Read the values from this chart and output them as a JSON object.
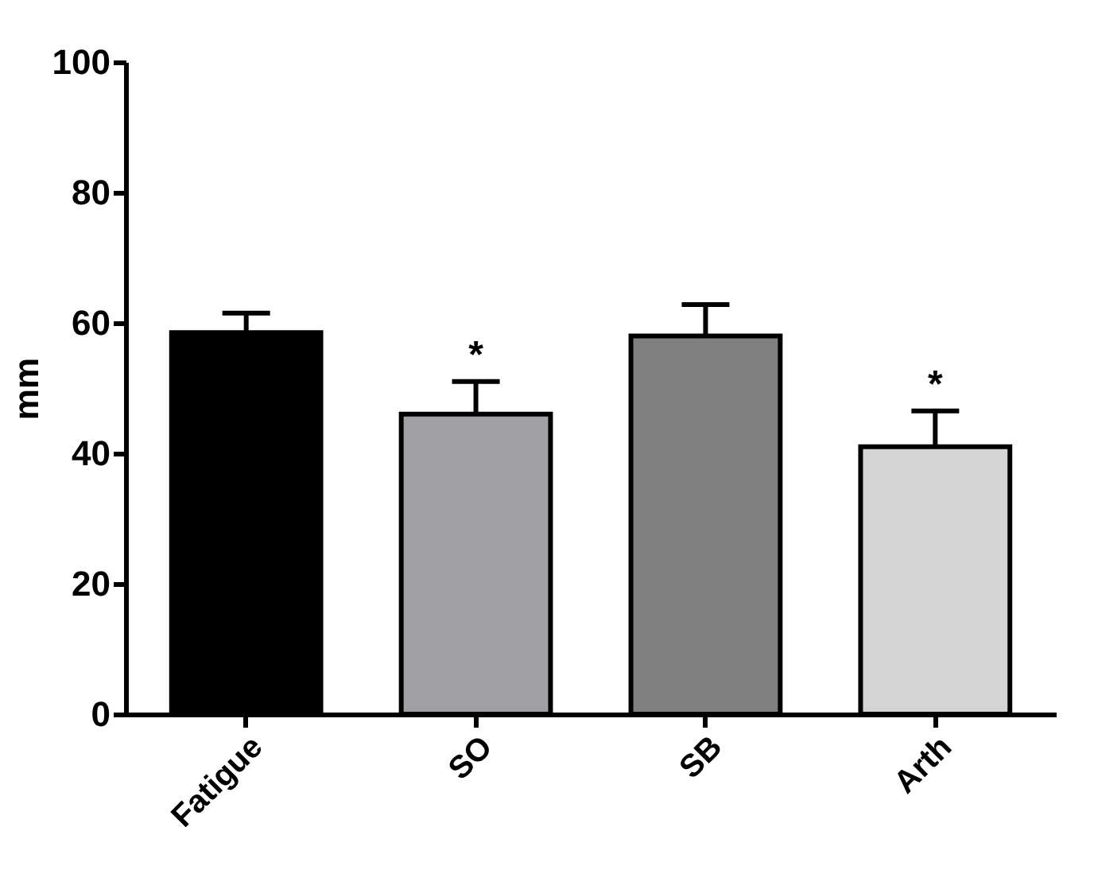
{
  "chart_data": {
    "type": "bar",
    "ylabel": "mm",
    "categories": [
      "Fatigue",
      "SO",
      "SB",
      "Arth"
    ],
    "values": [
      58.5,
      46,
      58,
      41
    ],
    "colors": [
      "#000000",
      "#a0a0a4",
      "#808080",
      "#d4d4d4"
    ],
    "errors": [
      [
        58.5,
        61.5
      ],
      [
        46,
        51
      ],
      [
        58,
        62.8
      ],
      [
        41,
        46.5
      ]
    ],
    "ylim": [
      0,
      100
    ],
    "yticks": [
      0,
      20,
      40,
      60,
      80,
      100
    ],
    "grid": false,
    "annotations": [
      {
        "text": "*",
        "x": "SO",
        "y": 51
      },
      {
        "text": "*",
        "x": "Arth",
        "y": 46.5
      }
    ]
  }
}
